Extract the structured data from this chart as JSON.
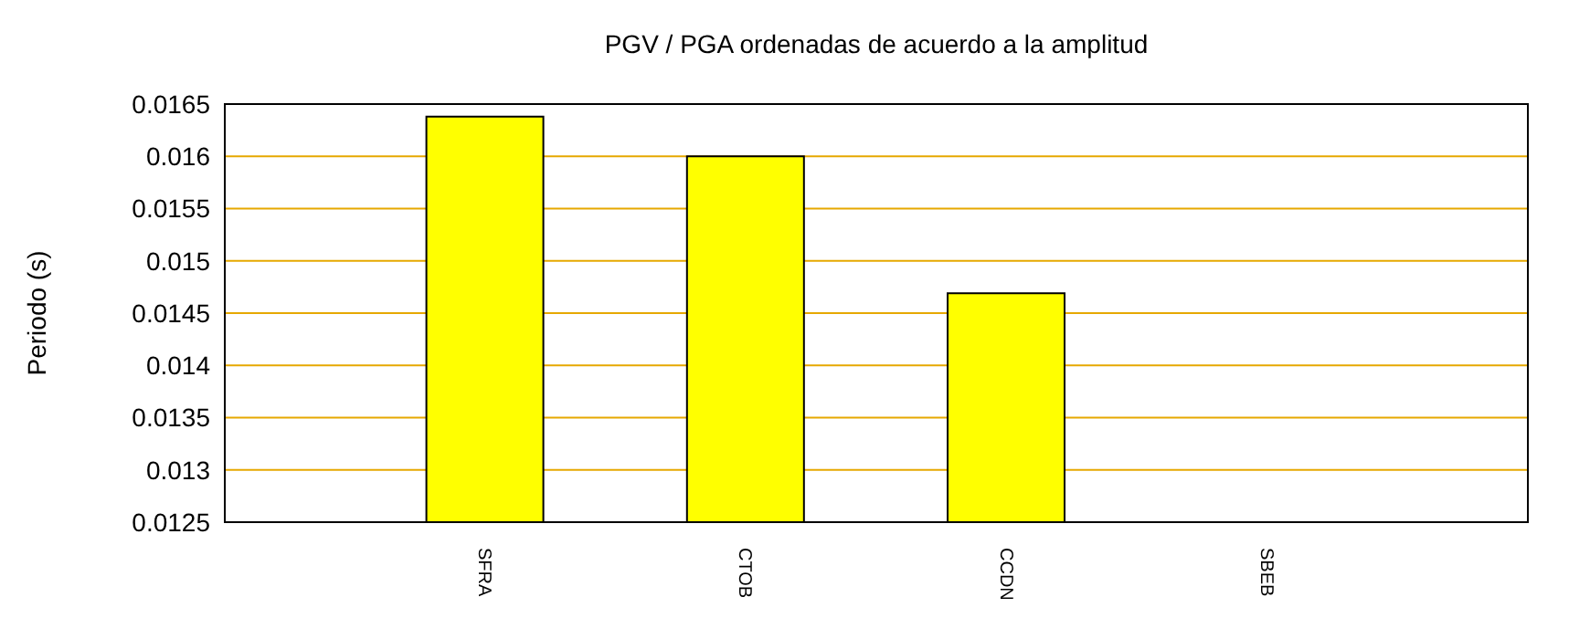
{
  "chart_data": {
    "type": "bar",
    "title": "PGV / PGA ordenadas de acuerdo a la amplitud",
    "ylabel": "Periodo (s)",
    "categories": [
      "SFRA",
      "CTOB",
      "CCDN",
      "SBEB"
    ],
    "series": [
      {
        "color": "#ffff00",
        "values": [
          0.01638,
          0.016,
          0.01469,
          null
        ]
      }
    ],
    "ylim": [
      0.0125,
      0.0165
    ],
    "yticks": [
      0.0125,
      0.013,
      0.0135,
      0.014,
      0.0145,
      0.015,
      0.0155,
      0.016,
      0.0165
    ],
    "grid": "y",
    "legend": false
  }
}
